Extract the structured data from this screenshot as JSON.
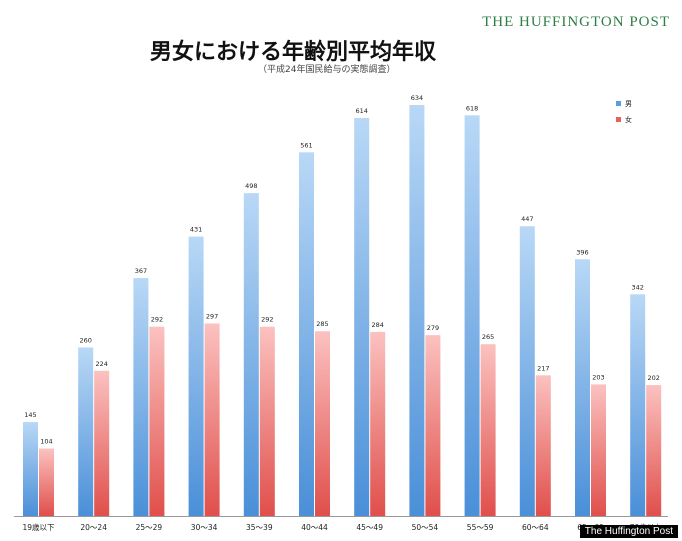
{
  "brand": "THE HUFFINGTON POST",
  "watermark": "The Huffington Post",
  "chart_data": {
    "type": "bar",
    "title": "男女における年齢別平均年収",
    "subtitle": "（平成24年国民給与の実態調査）",
    "categories": [
      "19歳以下",
      "20～24",
      "25～29",
      "30～34",
      "35～39",
      "40～44",
      "45～49",
      "50～54",
      "55～59",
      "60～64",
      "65～69",
      "70歳以上"
    ],
    "series": [
      {
        "name": "男",
        "color": "#5b9ee0",
        "values": [
          145,
          260,
          367,
          431,
          498,
          561,
          614,
          634,
          618,
          447,
          396,
          342
        ]
      },
      {
        "name": "女",
        "color": "#e8605c",
        "values": [
          104,
          224,
          292,
          297,
          292,
          285,
          284,
          279,
          265,
          217,
          203,
          202
        ]
      }
    ],
    "ylim": [
      0,
      650
    ],
    "grid": false,
    "legend": "top-right",
    "xlabel": "",
    "ylabel": ""
  }
}
